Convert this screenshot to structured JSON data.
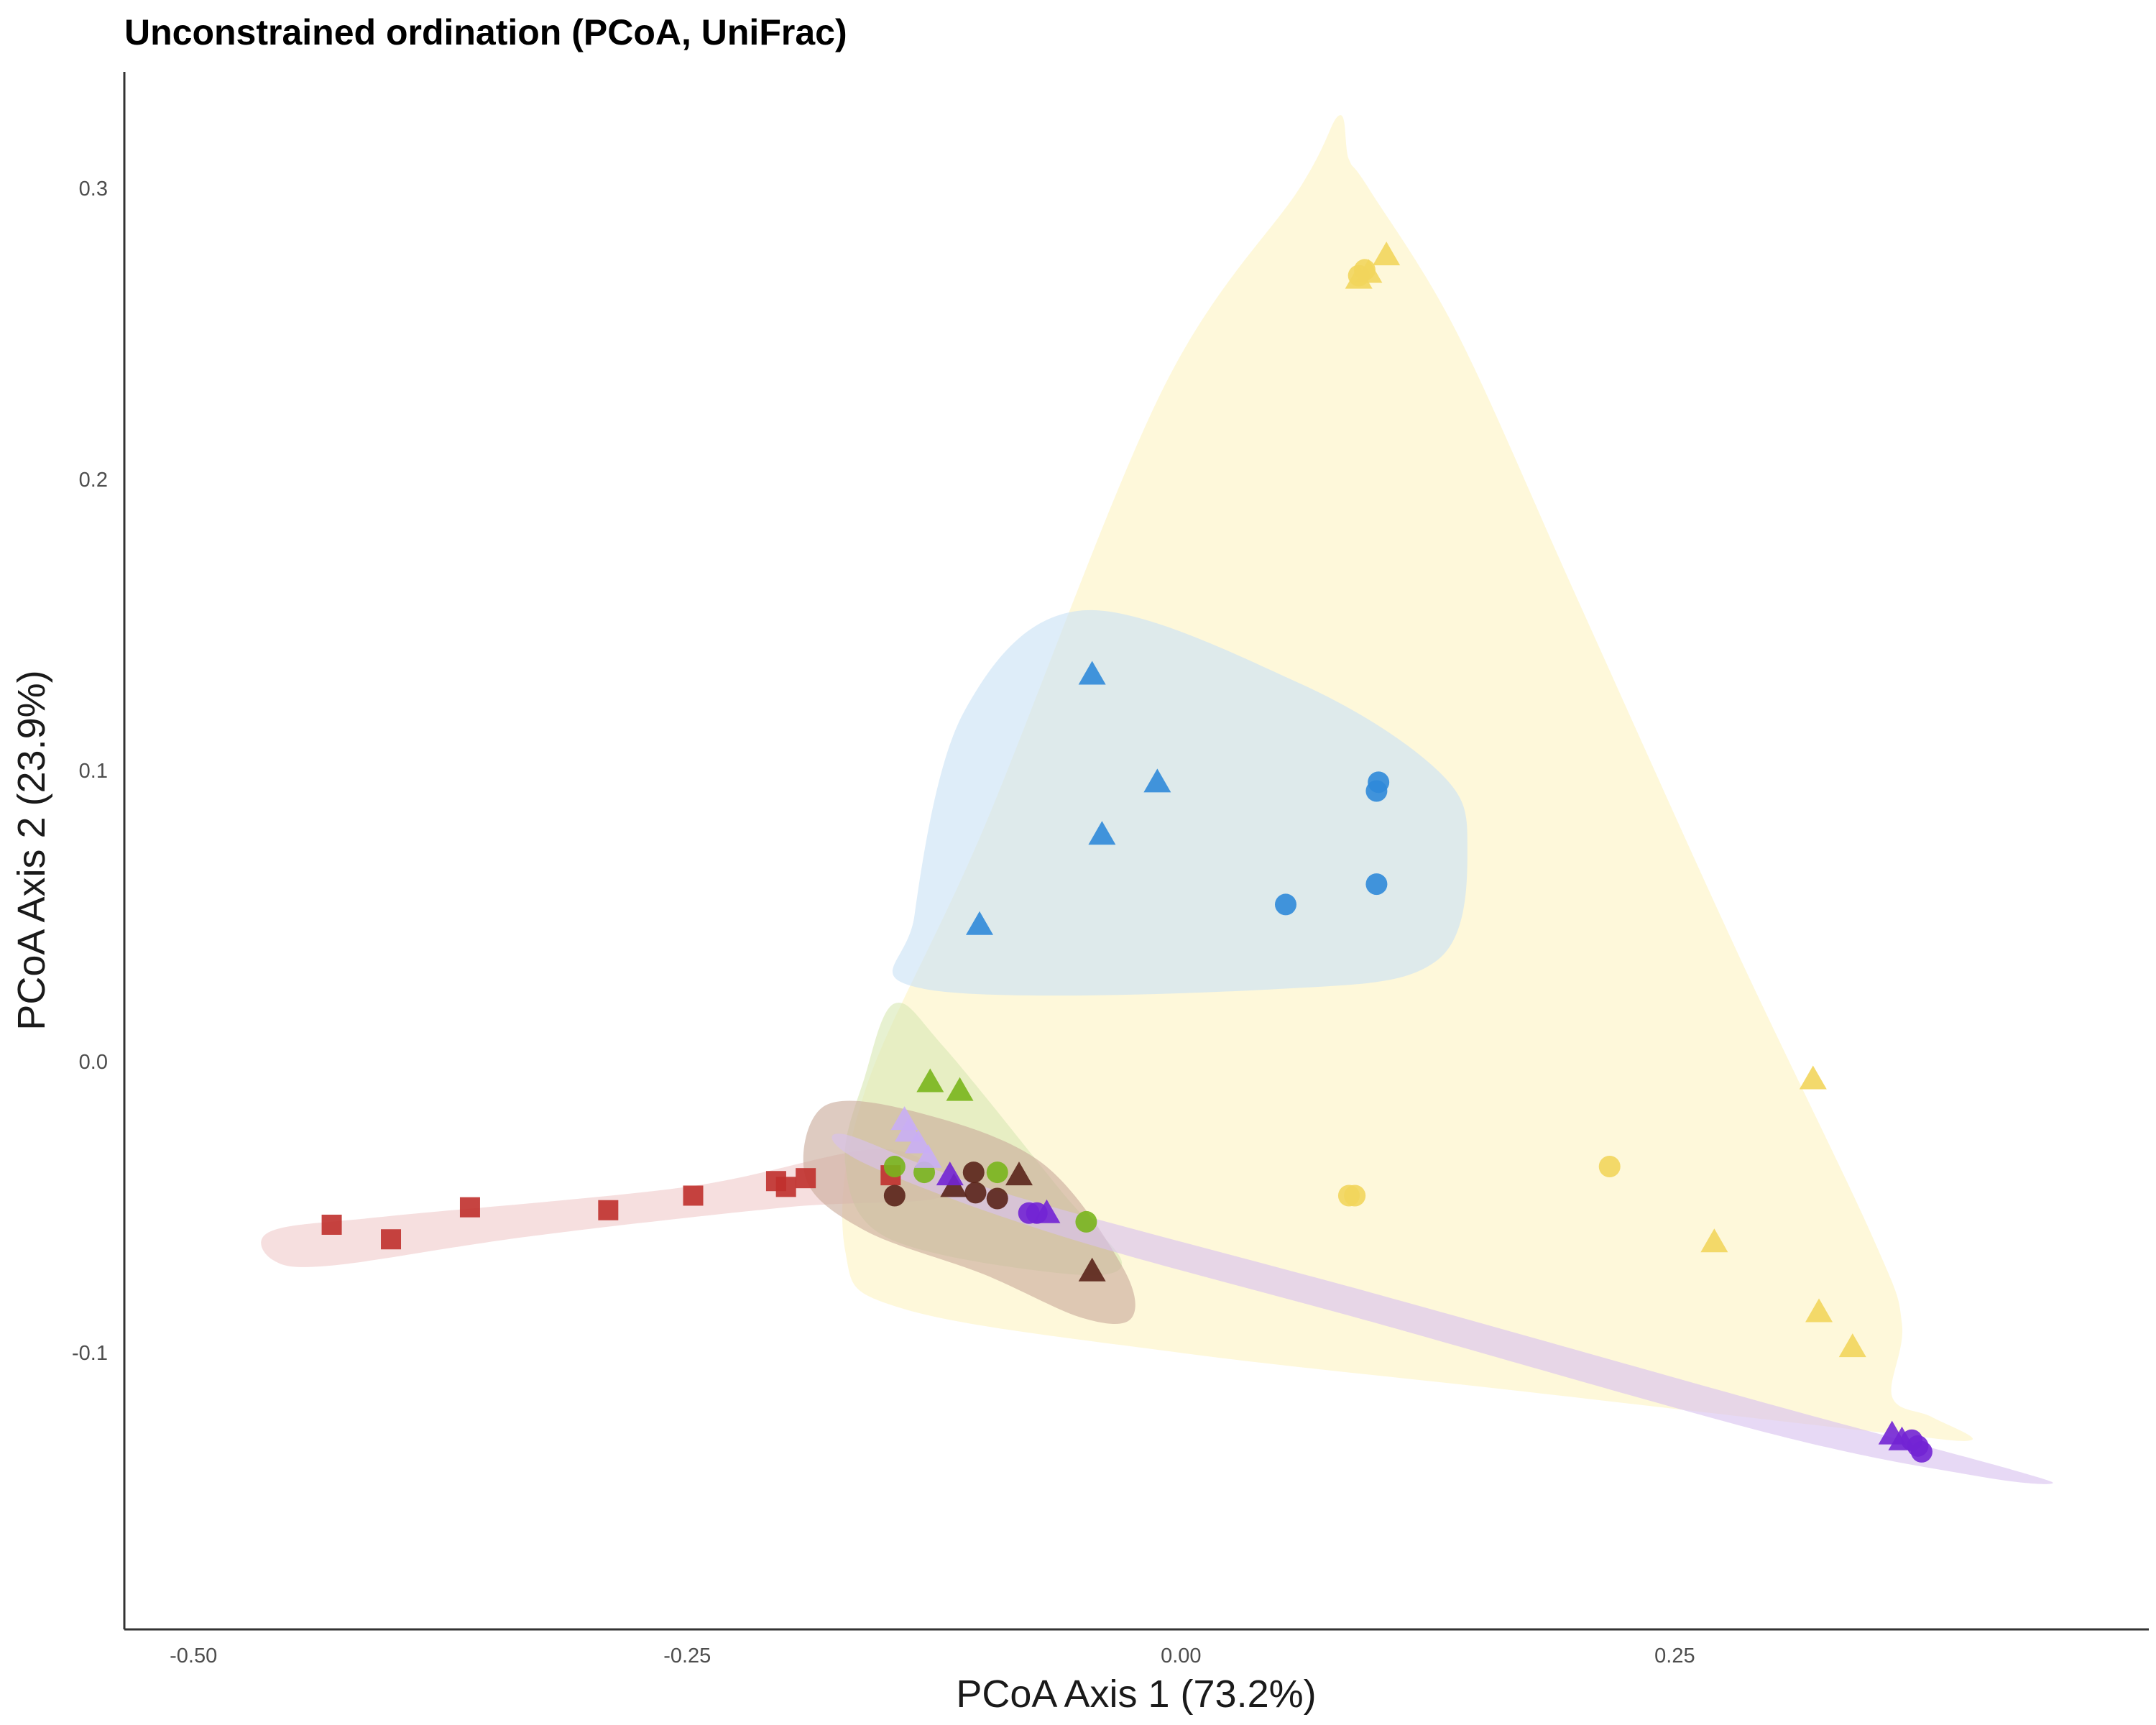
{
  "chart_data": {
    "type": "scatter",
    "title": "Unconstrained ordination (PCoA, UniFrac)",
    "xlabel": "PCoA Axis 1 (73.2%)",
    "ylabel": "PCoA Axis 2 (23.9%)",
    "xlim": [
      -0.535,
      0.49
    ],
    "ylim": [
      -0.195,
      0.34
    ],
    "x_ticks": [
      "-0.50",
      "-0.25",
      "0.00",
      "0.25"
    ],
    "x_tick_values": [
      -0.5,
      -0.25,
      0.0,
      0.25
    ],
    "y_ticks": [
      "-0.1",
      "0.0",
      "0.1",
      "0.2",
      "0.3"
    ],
    "y_tick_values": [
      -0.1,
      0.0,
      0.1,
      0.2,
      0.3
    ],
    "grid": false,
    "legend": "none",
    "series": [
      {
        "color": "#f2d55c",
        "hull_color": "#fdf3c4",
        "hull": [
          [
            0.08,
            0.325
          ],
          [
            0.085,
            0.31
          ],
          [
            0.095,
            0.3
          ],
          [
            0.14,
            0.25
          ],
          [
            0.2,
            0.16
          ],
          [
            0.28,
            0.04
          ],
          [
            0.35,
            -0.06
          ],
          [
            0.365,
            -0.09
          ],
          [
            0.36,
            -0.115
          ],
          [
            0.38,
            -0.122
          ],
          [
            0.4,
            -0.13
          ],
          [
            0.35,
            -0.127
          ],
          [
            0.17,
            -0.113
          ],
          [
            0.0,
            -0.1
          ],
          [
            -0.14,
            -0.085
          ],
          [
            -0.17,
            -0.065
          ],
          [
            -0.16,
            -0.01
          ],
          [
            -0.1,
            0.08
          ],
          [
            -0.01,
            0.23
          ],
          [
            0.06,
            0.3
          ]
        ],
        "points": [
          {
            "x": 0.09,
            "y": 0.27,
            "shape": "circle"
          },
          {
            "x": 0.093,
            "y": 0.272,
            "shape": "circle"
          },
          {
            "x": 0.085,
            "y": -0.046,
            "shape": "circle"
          },
          {
            "x": 0.088,
            "y": -0.046,
            "shape": "circle"
          },
          {
            "x": 0.217,
            "y": -0.036,
            "shape": "circle"
          },
          {
            "x": 0.104,
            "y": 0.277,
            "shape": "triangle"
          },
          {
            "x": 0.095,
            "y": 0.271,
            "shape": "triangle"
          },
          {
            "x": 0.09,
            "y": 0.269,
            "shape": "triangle"
          },
          {
            "x": 0.32,
            "y": -0.006,
            "shape": "triangle"
          },
          {
            "x": 0.27,
            "y": -0.062,
            "shape": "triangle"
          },
          {
            "x": 0.323,
            "y": -0.086,
            "shape": "triangle"
          },
          {
            "x": 0.34,
            "y": -0.098,
            "shape": "triangle"
          }
        ]
      },
      {
        "color": "#2f89d9",
        "hull_color": "#c9e2f5",
        "hull": [
          [
            -0.05,
            0.155
          ],
          [
            0.06,
            0.13
          ],
          [
            0.13,
            0.1
          ],
          [
            0.145,
            0.075
          ],
          [
            0.13,
            0.035
          ],
          [
            0.05,
            0.025
          ],
          [
            -0.13,
            0.025
          ],
          [
            -0.135,
            0.05
          ],
          [
            -0.11,
            0.12
          ]
        ],
        "points": [
          {
            "x": 0.1,
            "y": 0.096,
            "shape": "circle"
          },
          {
            "x": 0.099,
            "y": 0.093,
            "shape": "circle"
          },
          {
            "x": 0.053,
            "y": 0.054,
            "shape": "circle"
          },
          {
            "x": 0.099,
            "y": 0.061,
            "shape": "circle"
          },
          {
            "x": -0.045,
            "y": 0.133,
            "shape": "triangle"
          },
          {
            "x": -0.012,
            "y": 0.096,
            "shape": "triangle"
          },
          {
            "x": -0.04,
            "y": 0.078,
            "shape": "triangle"
          },
          {
            "x": -0.102,
            "y": 0.047,
            "shape": "triangle"
          }
        ]
      },
      {
        "color": "#c0302c",
        "hull_color": "#f0cccc",
        "hull": [
          [
            -0.46,
            -0.058
          ],
          [
            -0.4,
            -0.053
          ],
          [
            -0.25,
            -0.043
          ],
          [
            -0.15,
            -0.03
          ],
          [
            -0.12,
            -0.046
          ],
          [
            -0.2,
            -0.05
          ],
          [
            -0.33,
            -0.06
          ],
          [
            -0.43,
            -0.07
          ],
          [
            -0.46,
            -0.068
          ]
        ],
        "points": [
          {
            "x": -0.43,
            "y": -0.056,
            "shape": "square"
          },
          {
            "x": -0.4,
            "y": -0.061,
            "shape": "square"
          },
          {
            "x": -0.36,
            "y": -0.05,
            "shape": "square"
          },
          {
            "x": -0.29,
            "y": -0.051,
            "shape": "square"
          },
          {
            "x": -0.247,
            "y": -0.046,
            "shape": "square"
          },
          {
            "x": -0.205,
            "y": -0.041,
            "shape": "square"
          },
          {
            "x": -0.2,
            "y": -0.043,
            "shape": "square"
          },
          {
            "x": -0.19,
            "y": -0.04,
            "shape": "square"
          },
          {
            "x": -0.147,
            "y": -0.039,
            "shape": "square"
          }
        ]
      },
      {
        "color": "#79b51c",
        "hull_color": "#d8e9b4",
        "hull": [
          [
            -0.145,
            0.02
          ],
          [
            -0.12,
            0.005
          ],
          [
            -0.06,
            -0.045
          ],
          [
            -0.03,
            -0.07
          ],
          [
            -0.07,
            -0.072
          ],
          [
            -0.15,
            -0.06
          ],
          [
            -0.17,
            -0.035
          ],
          [
            -0.16,
            -0.005
          ]
        ],
        "points": [
          {
            "x": -0.145,
            "y": -0.036,
            "shape": "circle"
          },
          {
            "x": -0.13,
            "y": -0.038,
            "shape": "circle"
          },
          {
            "x": -0.093,
            "y": -0.038,
            "shape": "circle"
          },
          {
            "x": -0.048,
            "y": -0.055,
            "shape": "circle"
          },
          {
            "x": -0.127,
            "y": -0.007,
            "shape": "triangle"
          },
          {
            "x": -0.112,
            "y": -0.01,
            "shape": "triangle"
          }
        ]
      },
      {
        "color": "#5a2419",
        "hull_color": "#c9ab9b",
        "hull": [
          [
            -0.18,
            -0.015
          ],
          [
            -0.13,
            -0.018
          ],
          [
            -0.07,
            -0.035
          ],
          [
            -0.03,
            -0.07
          ],
          [
            -0.025,
            -0.088
          ],
          [
            -0.05,
            -0.088
          ],
          [
            -0.1,
            -0.073
          ],
          [
            -0.16,
            -0.058
          ],
          [
            -0.19,
            -0.04
          ]
        ],
        "points": [
          {
            "x": -0.145,
            "y": -0.046,
            "shape": "circle"
          },
          {
            "x": -0.105,
            "y": -0.038,
            "shape": "circle"
          },
          {
            "x": -0.104,
            "y": -0.045,
            "shape": "circle"
          },
          {
            "x": -0.093,
            "y": -0.047,
            "shape": "circle"
          },
          {
            "x": -0.115,
            "y": -0.043,
            "shape": "triangle"
          },
          {
            "x": -0.082,
            "y": -0.039,
            "shape": "triangle"
          },
          {
            "x": -0.045,
            "y": -0.072,
            "shape": "triangle"
          }
        ]
      },
      {
        "color": "#7224d4",
        "hull_color": "#d8c2ef",
        "hull": [
          [
            -0.17,
            -0.025
          ],
          [
            -0.09,
            -0.045
          ],
          [
            0.1,
            -0.08
          ],
          [
            0.3,
            -0.118
          ],
          [
            0.42,
            -0.14
          ],
          [
            0.44,
            -0.145
          ],
          [
            0.4,
            -0.142
          ],
          [
            0.3,
            -0.128
          ],
          [
            0.1,
            -0.09
          ],
          [
            -0.06,
            -0.06
          ],
          [
            -0.16,
            -0.035
          ]
        ],
        "points": [
          {
            "x": -0.077,
            "y": -0.052,
            "shape": "circle"
          },
          {
            "x": -0.073,
            "y": -0.052,
            "shape": "circle"
          },
          {
            "x": 0.37,
            "y": -0.13,
            "shape": "circle"
          },
          {
            "x": 0.373,
            "y": -0.132,
            "shape": "circle"
          },
          {
            "x": 0.375,
            "y": -0.134,
            "shape": "circle"
          },
          {
            "x": -0.117,
            "y": -0.039,
            "shape": "triangle"
          },
          {
            "x": -0.068,
            "y": -0.052,
            "shape": "triangle"
          },
          {
            "x": 0.36,
            "y": -0.128,
            "shape": "triangle"
          },
          {
            "x": 0.365,
            "y": -0.13,
            "shape": "triangle"
          }
        ]
      },
      {
        "color": "#c9aef4",
        "hull_color": "#e6d9f7",
        "hull": [],
        "points": [
          {
            "x": -0.14,
            "y": -0.02,
            "shape": "triangle"
          },
          {
            "x": -0.138,
            "y": -0.024,
            "shape": "triangle"
          },
          {
            "x": -0.133,
            "y": -0.028,
            "shape": "triangle"
          },
          {
            "x": -0.128,
            "y": -0.033,
            "shape": "triangle"
          }
        ]
      }
    ]
  }
}
